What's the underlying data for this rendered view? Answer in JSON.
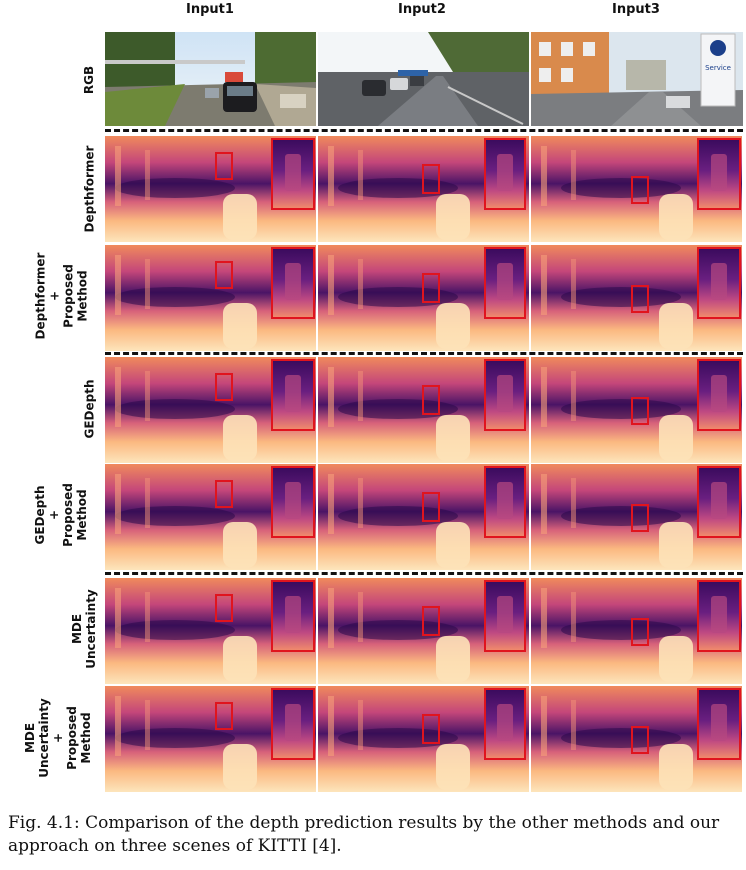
{
  "columns": [
    "Input1",
    "Input2",
    "Input3"
  ],
  "rows": [
    {
      "label": "RGB"
    },
    {
      "label": "Depthformer"
    },
    {
      "label": "Depthformer\n+\nProposed\nMethod"
    },
    {
      "label": "GEDepth"
    },
    {
      "label": "GEDepth\n+\nProposed\nMethod"
    },
    {
      "label": "MDE\nUncertainty"
    },
    {
      "label": "MDE\nUncertainty\n+\nProposed\nMethod"
    }
  ],
  "rgb_scenes": [
    {
      "sign_text": ""
    },
    {
      "sign_text": ""
    },
    {
      "sign_text": "Service"
    }
  ],
  "caption": "Fig. 4.1: Comparison of the depth prediction results by the other methods and our approach on three scenes of KITTI [4].",
  "colors": {
    "inset_border": "#e0141e",
    "far": "#3a0a5e",
    "mid": "#b13a7a",
    "near": "#fde0b0"
  }
}
